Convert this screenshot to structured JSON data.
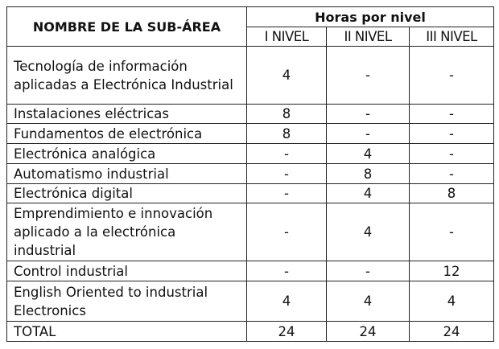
{
  "header": {
    "name_col": "NOMBRE DE LA SUB-ÁREA",
    "group": "Horas por nivel",
    "levels": [
      "I NIVEL",
      "II NIVEL",
      "III NIVEL"
    ]
  },
  "rows": [
    {
      "name": "Tecnología de información aplicadas a Electrónica Industrial",
      "v": [
        "4",
        "-",
        "-"
      ]
    },
    {
      "name": "Instalaciones eléctricas",
      "v": [
        "8",
        "-",
        "-"
      ]
    },
    {
      "name": "Fundamentos de electrónica",
      "v": [
        "8",
        "-",
        "-"
      ]
    },
    {
      "name": "Electrónica analógica",
      "v": [
        "-",
        "4",
        "-"
      ]
    },
    {
      "name": "Automatismo industrial",
      "v": [
        "-",
        "8",
        "-"
      ]
    },
    {
      "name": "Electrónica digital",
      "v": [
        "-",
        "4",
        "8"
      ]
    },
    {
      "name": "Emprendimiento e innovación aplicado a la electrónica industrial",
      "v": [
        "-",
        "4",
        "-"
      ]
    },
    {
      "name": "Control industrial",
      "v": [
        "-",
        "-",
        "12"
      ]
    },
    {
      "name": "English Oriented to industrial Electronics",
      "v": [
        "4",
        "4",
        "4"
      ]
    },
    {
      "name": "TOTAL",
      "v": [
        "24",
        "24",
        "24"
      ]
    }
  ]
}
